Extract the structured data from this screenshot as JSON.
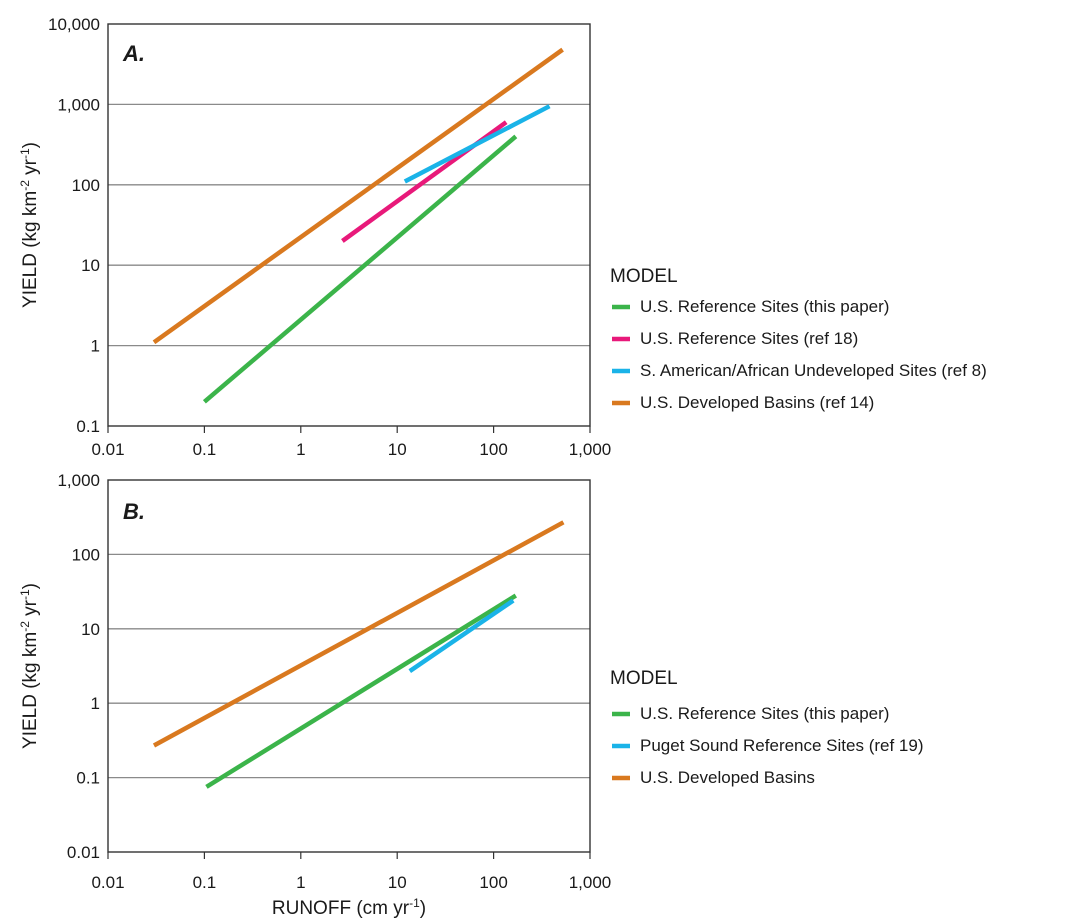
{
  "chart_data": [
    {
      "type": "line",
      "panel_label": "A.",
      "x_scale": "log",
      "y_scale": "log",
      "xlim": [
        0.01,
        1000
      ],
      "ylim": [
        0.1,
        10000
      ],
      "xticks": [
        "0.01",
        "0.1",
        "1",
        "10",
        "100",
        "1,000"
      ],
      "yticks": [
        "0.1",
        "1",
        "10",
        "100",
        "1,000",
        "10,000"
      ],
      "ylabel": "YIELD (kg km",
      "ylabel_sup1": "-2",
      "ylabel_mid": " yr",
      "ylabel_sup2": "-1",
      "ylabel_end": ")",
      "xlabel": "",
      "grid": "horizontal",
      "legend": {
        "title": "MODEL",
        "placement": "right"
      },
      "series": [
        {
          "name": "U.S. Reference Sites (this paper)",
          "color": "#3bb44a",
          "x": [
            0.1,
            170
          ],
          "y": [
            0.2,
            400
          ]
        },
        {
          "name": "U.S. Reference Sites (ref 18)",
          "color": "#e8197a",
          "x": [
            2.7,
            135
          ],
          "y": [
            20,
            600
          ]
        },
        {
          "name": "S. American/African Undeveloped Sites (ref 8)",
          "color": "#1ab3e8",
          "x": [
            12,
            380
          ],
          "y": [
            110,
            950
          ]
        },
        {
          "name": "U.S. Developed Basins (ref 14)",
          "color": "#d9791f",
          "x": [
            0.03,
            520
          ],
          "y": [
            1.1,
            4800
          ]
        }
      ]
    },
    {
      "type": "line",
      "panel_label": "B.",
      "x_scale": "log",
      "y_scale": "log",
      "xlim": [
        0.01,
        1000
      ],
      "ylim": [
        0.01,
        1000
      ],
      "xticks": [
        "0.01",
        "0.1",
        "1",
        "10",
        "100",
        "1,000"
      ],
      "yticks": [
        "0.01",
        "0.1",
        "1",
        "10",
        "100",
        "1,000"
      ],
      "ylabel": "YIELD (kg km",
      "ylabel_sup1": "-2",
      "ylabel_mid": " yr",
      "ylabel_sup2": "-1",
      "ylabel_end": ")",
      "xlabel": "RUNOFF (cm yr",
      "xlabel_sup": "-1",
      "xlabel_end": ")",
      "grid": "horizontal",
      "legend": {
        "title": "MODEL",
        "placement": "right"
      },
      "series": [
        {
          "name": "U.S. Reference Sites (this paper)",
          "color": "#3bb44a",
          "x": [
            0.105,
            170
          ],
          "y": [
            0.075,
            28
          ]
        },
        {
          "name": "Puget Sound Reference Sites (ref 19)",
          "color": "#1ab3e8",
          "x": [
            13.5,
            160
          ],
          "y": [
            2.7,
            24
          ]
        },
        {
          "name": "U.S. Developed Basins",
          "color": "#d9791f",
          "x": [
            0.03,
            530
          ],
          "y": [
            0.27,
            270
          ]
        }
      ]
    }
  ]
}
